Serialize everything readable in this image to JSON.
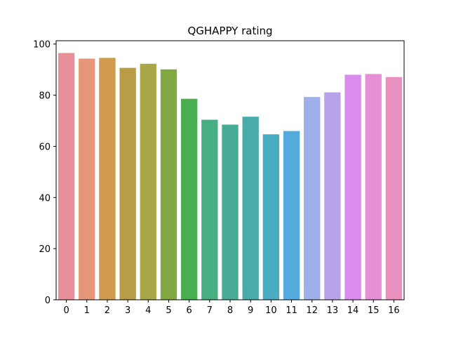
{
  "chart_data": {
    "type": "bar",
    "title": "QGHAPPY rating",
    "xlabel": "",
    "ylabel": "",
    "categories": [
      "0",
      "1",
      "2",
      "3",
      "4",
      "5",
      "6",
      "7",
      "8",
      "9",
      "10",
      "11",
      "12",
      "13",
      "14",
      "15",
      "16"
    ],
    "values": [
      96.5,
      94.3,
      94.6,
      90.7,
      92.3,
      90.1,
      78.6,
      70.4,
      68.5,
      71.6,
      64.7,
      66.0,
      79.3,
      81.1,
      88.0,
      88.3,
      87.1
    ],
    "colors": [
      "#e8909a",
      "#e69679",
      "#d19a4c",
      "#b89c46",
      "#a8a646",
      "#82a844",
      "#48b051",
      "#46ae80",
      "#48ab96",
      "#48aca9",
      "#4aacc0",
      "#54acde",
      "#9fb0e8",
      "#b8a2e8",
      "#d98ceb",
      "#e78ed6",
      "#e891be"
    ],
    "ylim": [
      0,
      101.3
    ],
    "yticks": [
      0,
      20,
      40,
      60,
      80,
      100
    ],
    "grid": false,
    "legend": "none"
  }
}
